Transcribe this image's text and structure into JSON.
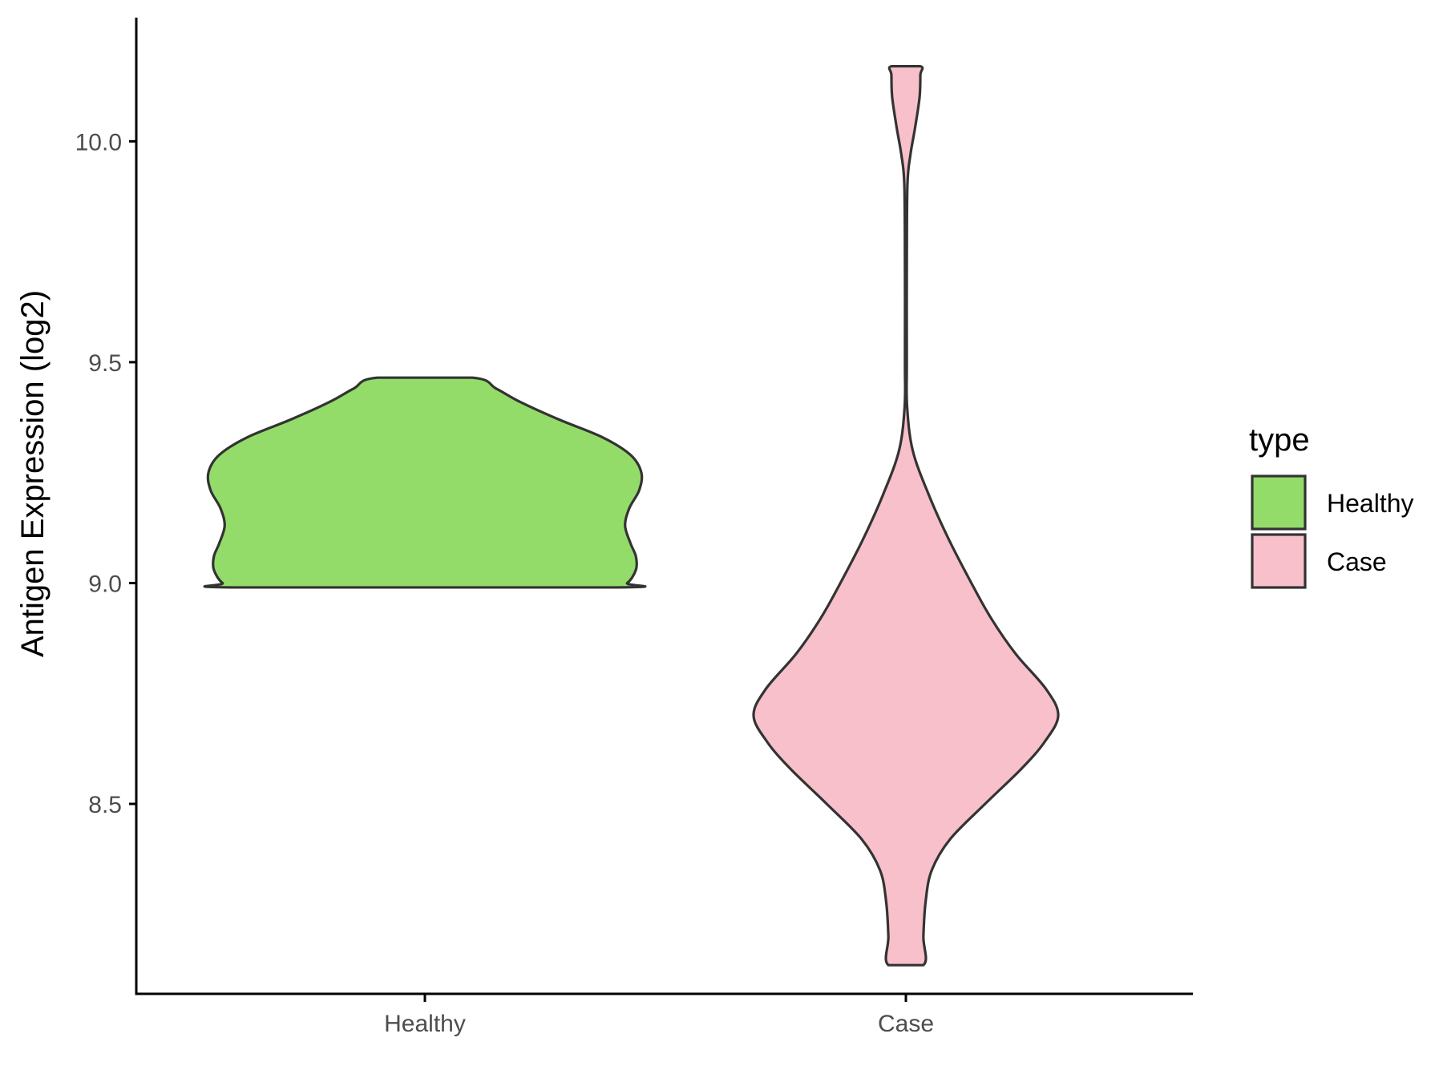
{
  "chart_data": {
    "type": "violin",
    "ylabel": "Antigen Expression (log2)",
    "xlabel": "",
    "ylim": [
      8.07,
      10.28
    ],
    "yticks": [
      8.5,
      9.0,
      9.5,
      10.0
    ],
    "ytick_labels": [
      "8.5",
      "9.0",
      "9.5",
      "10.0"
    ],
    "categories": [
      "Healthy",
      "Case"
    ],
    "grid": false,
    "legend": {
      "title": "type",
      "position": "right",
      "entries": [
        {
          "label": "Healthy",
          "color": "#93dc6a"
        },
        {
          "label": "Case",
          "color": "#f8c0cb"
        }
      ]
    },
    "series": [
      {
        "category": "Healthy",
        "color": "#93dc6a",
        "min": 8.99,
        "max": 9.465,
        "profile": [
          [
            8.99,
            0.87
          ],
          [
            9.0,
            0.935
          ],
          [
            9.03,
            0.975
          ],
          [
            9.06,
            0.975
          ],
          [
            9.09,
            0.95
          ],
          [
            9.13,
            0.925
          ],
          [
            9.17,
            0.945
          ],
          [
            9.21,
            0.99
          ],
          [
            9.25,
            1.0
          ],
          [
            9.29,
            0.95
          ],
          [
            9.33,
            0.82
          ],
          [
            9.37,
            0.62
          ],
          [
            9.41,
            0.44
          ],
          [
            9.44,
            0.33
          ],
          [
            9.465,
            0.22
          ]
        ]
      },
      {
        "category": "Case",
        "color": "#f8c0cb",
        "min": 8.135,
        "max": 10.17,
        "profile": [
          [
            8.135,
            0.115
          ],
          [
            8.2,
            0.115
          ],
          [
            8.28,
            0.13
          ],
          [
            8.35,
            0.17
          ],
          [
            8.42,
            0.29
          ],
          [
            8.5,
            0.52
          ],
          [
            8.58,
            0.76
          ],
          [
            8.64,
            0.91
          ],
          [
            8.7,
            1.0
          ],
          [
            8.76,
            0.92
          ],
          [
            8.84,
            0.72
          ],
          [
            8.92,
            0.56
          ],
          [
            9.0,
            0.43
          ],
          [
            9.1,
            0.28
          ],
          [
            9.2,
            0.15
          ],
          [
            9.3,
            0.045
          ],
          [
            9.4,
            0.008
          ],
          [
            9.5,
            0.006
          ],
          [
            9.7,
            0.006
          ],
          [
            9.9,
            0.01
          ],
          [
            9.97,
            0.03
          ],
          [
            10.03,
            0.06
          ],
          [
            10.1,
            0.09
          ],
          [
            10.15,
            0.095
          ],
          [
            10.17,
            0.095
          ]
        ]
      }
    ]
  }
}
